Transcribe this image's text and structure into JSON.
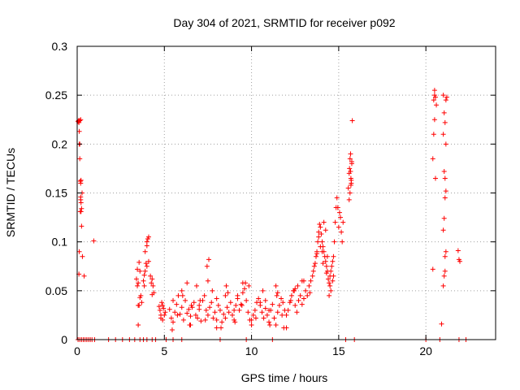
{
  "chart_data": {
    "type": "scatter",
    "title": "Day 304 of 2021, SRMTID for receiver p092",
    "xlabel": "GPS time / hours",
    "ylabel": "SRMTID / TECUs",
    "xlim": [
      0,
      24
    ],
    "ylim": [
      0,
      0.3
    ],
    "x_ticks": [
      0,
      5,
      10,
      15,
      20
    ],
    "x_tick_labels": [
      "0",
      "5",
      "10",
      "15",
      "20"
    ],
    "y_ticks": [
      0,
      0.05,
      0.1,
      0.15,
      0.2,
      0.25,
      0.3
    ],
    "y_tick_labels": [
      "0",
      "0.05",
      "0.1",
      "0.15",
      "0.2",
      "0.25",
      "0.3"
    ],
    "grid": true,
    "marker": "plus",
    "color": "#ff0000",
    "series": [
      {
        "name": "SRMTID",
        "x": [
          0.05,
          0.08,
          0.1,
          0.12,
          0.15,
          0.15,
          0.18,
          0.2,
          0.2,
          0.22,
          0.25,
          0.1,
          0.15,
          0.22,
          0.12,
          0.18,
          0.25,
          0.2,
          0.12,
          0.2,
          0.3,
          0.22,
          0.28,
          0.4,
          0.95,
          0.1,
          3.4,
          3.45,
          3.5,
          3.55,
          3.6,
          3.65,
          3.7,
          3.5,
          3.55,
          3.8,
          3.85,
          3.9,
          3.95,
          4.0,
          4.05,
          4.1,
          3.9,
          4.0,
          4.2,
          4.3,
          4.25,
          4.35,
          4.4,
          3.85,
          3.6,
          3.45,
          4.0,
          4.1,
          4.3,
          3.5,
          4.7,
          4.75,
          4.8,
          4.85,
          4.9,
          4.95,
          5.0,
          5.05,
          4.8,
          4.9,
          5.3,
          5.4,
          5.5,
          5.6,
          5.7,
          5.8,
          5.9,
          6.0,
          6.1,
          6.2,
          6.3,
          6.4,
          6.5,
          6.6,
          6.7,
          6.8,
          6.9,
          7.0,
          7.1,
          7.2,
          7.3,
          7.4,
          7.5,
          7.6,
          7.7,
          7.8,
          7.9,
          8.0,
          8.1,
          8.2,
          8.3,
          8.4,
          8.5,
          8.6,
          8.7,
          8.8,
          8.9,
          9.0,
          9.1,
          9.2,
          9.3,
          9.4,
          9.5,
          9.6,
          9.7,
          9.8,
          9.9,
          10.0,
          10.1,
          10.2,
          10.3,
          10.4,
          10.5,
          10.6,
          10.7,
          10.8,
          10.9,
          11.0,
          11.1,
          11.2,
          11.3,
          11.4,
          11.5,
          11.6,
          11.7,
          11.8,
          11.9,
          12.0,
          12.1,
          12.2,
          12.3,
          12.4,
          12.5,
          12.6,
          12.7,
          12.8,
          12.9,
          13.0,
          5.45,
          5.75,
          6.05,
          6.45,
          6.85,
          7.35,
          7.75,
          8.25,
          8.65,
          9.05,
          9.45,
          9.85,
          10.25,
          10.65,
          11.05,
          11.45,
          11.85,
          12.25,
          12.65,
          5.5,
          6.0,
          6.5,
          7.0,
          7.5,
          8.0,
          8.5,
          9.0,
          9.5,
          10.0,
          10.5,
          11.0,
          11.5,
          12.0,
          12.5,
          13.0,
          6.3,
          6.55,
          7.05,
          7.45,
          7.55,
          8.0,
          8.55,
          9.2,
          9.65,
          10.8,
          11.4,
          11.75,
          12.45,
          12.9,
          13.1,
          13.2,
          13.3,
          13.35,
          13.4,
          13.5,
          13.55,
          13.6,
          13.65,
          13.7,
          13.75,
          13.8,
          13.85,
          13.9,
          13.95,
          14.0,
          14.05,
          14.1,
          14.15,
          14.2,
          14.25,
          14.3,
          14.35,
          14.4,
          14.45,
          14.5,
          14.55,
          14.6,
          14.65,
          14.7,
          14.75,
          14.8,
          14.85,
          14.9,
          14.95,
          15.0,
          15.05,
          13.85,
          13.95,
          14.05,
          14.15,
          14.25,
          14.35,
          14.45,
          14.55,
          14.65,
          13.75,
          14.1,
          14.3,
          14.5,
          14.7,
          15.1,
          15.15,
          15.2,
          15.25,
          15.55,
          15.6,
          15.62,
          15.65,
          15.68,
          15.7,
          15.72,
          15.75,
          15.6,
          15.65,
          15.7,
          15.75,
          15.68,
          15.72,
          15.78,
          20.4,
          20.45,
          20.5,
          20.5,
          20.55,
          20.6,
          20.5,
          20.45,
          20.4,
          20.55,
          20.9,
          21.0,
          21.05,
          21.1,
          21.1,
          21.15,
          21.0,
          21.05,
          21.1,
          21.15,
          21.1,
          21.05,
          21.15,
          21.0,
          21.1,
          21.05,
          21.15,
          21.2,
          21.0,
          21.85,
          21.9,
          21.95,
          0.05,
          0.15,
          0.25,
          0.35,
          0.45,
          0.55,
          0.65,
          0.75,
          0.85,
          1.0,
          1.8,
          2.2,
          2.6,
          3.0,
          3.3,
          3.6,
          3.8,
          4.0,
          4.3,
          4.5,
          5.1,
          5.5,
          6.0,
          8.2,
          9.7,
          11.2,
          15.4,
          15.9,
          20.0,
          20.8,
          21.9,
          22.3
        ],
        "y": [
          0.223,
          0.224,
          0.222,
          0.213,
          0.2,
          0.185,
          0.162,
          0.16,
          0.146,
          0.14,
          0.134,
          0.224,
          0.224,
          0.163,
          0.2,
          0.131,
          0.116,
          0.225,
          0.09,
          0.143,
          0.085,
          0.131,
          0.15,
          0.065,
          0.101,
          0.067,
          0.062,
          0.055,
          0.058,
          0.079,
          0.07,
          0.045,
          0.038,
          0.015,
          0.035,
          0.06,
          0.055,
          0.07,
          0.078,
          0.096,
          0.103,
          0.105,
          0.09,
          0.1,
          0.065,
          0.062,
          0.058,
          0.055,
          0.048,
          0.066,
          0.043,
          0.072,
          0.075,
          0.08,
          0.046,
          0.035,
          0.034,
          0.03,
          0.025,
          0.038,
          0.02,
          0.032,
          0.025,
          0.028,
          0.022,
          0.035,
          0.031,
          0.022,
          0.018,
          0.028,
          0.036,
          0.045,
          0.026,
          0.033,
          0.02,
          0.04,
          0.027,
          0.031,
          0.024,
          0.033,
          0.038,
          0.025,
          0.022,
          0.031,
          0.019,
          0.04,
          0.045,
          0.03,
          0.025,
          0.033,
          0.038,
          0.022,
          0.028,
          0.02,
          0.035,
          0.03,
          0.018,
          0.026,
          0.022,
          0.033,
          0.028,
          0.038,
          0.025,
          0.02,
          0.035,
          0.042,
          0.03,
          0.036,
          0.048,
          0.052,
          0.04,
          0.028,
          0.02,
          0.015,
          0.025,
          0.03,
          0.038,
          0.042,
          0.035,
          0.028,
          0.022,
          0.032,
          0.025,
          0.018,
          0.03,
          0.036,
          0.022,
          0.015,
          0.028,
          0.035,
          0.042,
          0.038,
          0.03,
          0.025,
          0.03,
          0.038,
          0.045,
          0.05,
          0.035,
          0.028,
          0.04,
          0.045,
          0.036,
          0.042,
          0.01,
          0.025,
          0.045,
          0.015,
          0.055,
          0.02,
          0.05,
          0.012,
          0.048,
          0.018,
          0.035,
          0.055,
          0.022,
          0.05,
          0.015,
          0.045,
          0.012,
          0.04,
          0.055,
          0.04,
          0.05,
          0.015,
          0.035,
          0.06,
          0.012,
          0.045,
          0.03,
          0.058,
          0.02,
          0.038,
          0.03,
          0.048,
          0.012,
          0.052,
          0.06,
          0.058,
          0.035,
          0.04,
          0.075,
          0.082,
          0.042,
          0.055,
          0.045,
          0.058,
          0.04,
          0.055,
          0.025,
          0.05,
          0.06,
          0.05,
          0.045,
          0.055,
          0.048,
          0.06,
          0.065,
          0.07,
          0.075,
          0.078,
          0.085,
          0.09,
          0.1,
          0.11,
          0.118,
          0.115,
          0.108,
          0.1,
          0.095,
          0.09,
          0.085,
          0.08,
          0.075,
          0.07,
          0.062,
          0.058,
          0.065,
          0.07,
          0.075,
          0.08,
          0.085,
          0.1,
          0.12,
          0.135,
          0.145,
          0.135,
          0.115,
          0.13,
          0.105,
          0.095,
          0.09,
          0.12,
          0.112,
          0.085,
          0.045,
          0.05,
          0.06,
          0.088,
          0.078,
          0.068,
          0.055,
          0.065,
          0.125,
          0.11,
          0.1,
          0.12,
          0.155,
          0.17,
          0.175,
          0.185,
          0.19,
          0.165,
          0.16,
          0.18,
          0.143,
          0.15,
          0.158,
          0.182,
          0.172,
          0.163,
          0.224,
          0.072,
          0.245,
          0.25,
          0.255,
          0.248,
          0.24,
          0.225,
          0.21,
          0.185,
          0.165,
          0.016,
          0.055,
          0.065,
          0.07,
          0.085,
          0.09,
          0.112,
          0.124,
          0.145,
          0.152,
          0.165,
          0.172,
          0.2,
          0.21,
          0.222,
          0.232,
          0.245,
          0.248,
          0.25,
          0.091,
          0.082,
          0.08,
          0,
          0,
          0,
          0,
          0,
          0,
          0,
          0,
          0,
          0,
          0,
          0,
          0,
          0,
          0,
          0,
          0,
          0,
          0,
          0,
          0,
          0,
          0,
          0,
          0,
          0,
          0,
          0,
          0,
          0,
          0,
          0
        ]
      }
    ]
  }
}
